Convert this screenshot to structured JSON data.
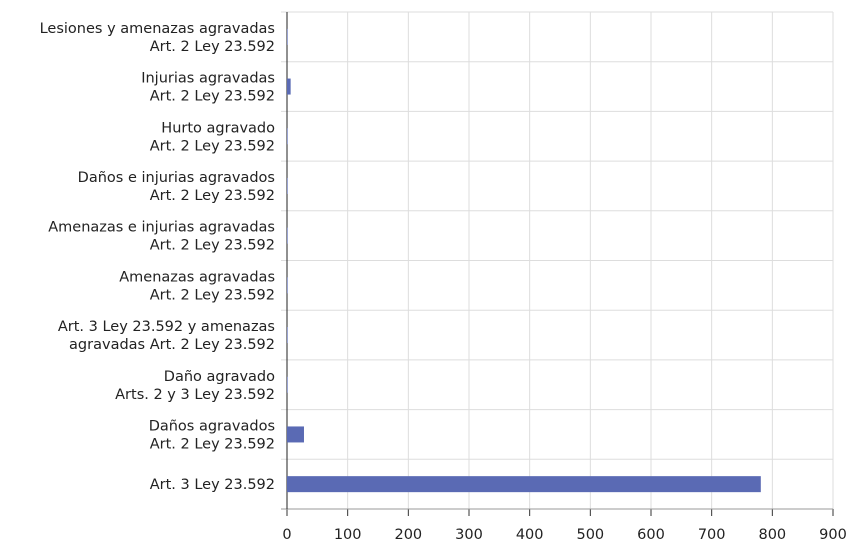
{
  "chart_data": {
    "type": "hbar",
    "categories": [
      "Lesiones y amenazas agravadas\nArt. 2 Ley 23.592",
      "Injurias agravadas\nArt. 2 Ley 23.592",
      "Hurto agravado\nArt. 2 Ley 23.592",
      "Daños e injurias agravados\nArt. 2 Ley 23.592",
      "Amenazas e injurias agravadas\nArt. 2 Ley 23.592",
      "Amenazas agravadas\nArt. 2 Ley 23.592",
      "Art. 3 Ley 23.592 y amenazas\nagravadas Art. 2 Ley 23.592",
      "Daño agravado\nArts. 2 y 3 Ley 23.592",
      "Daños agravados\nArt. 2 Ley 23.592",
      "Art. 3 Ley 23.592"
    ],
    "values": [
      1,
      6,
      1,
      1,
      1,
      1,
      1,
      1,
      28,
      781
    ],
    "color": "#5a6ab4",
    "xlim": [
      0,
      900
    ],
    "xticks": [
      0,
      100,
      200,
      300,
      400,
      500,
      600,
      700,
      800,
      900
    ],
    "grid": true
  }
}
